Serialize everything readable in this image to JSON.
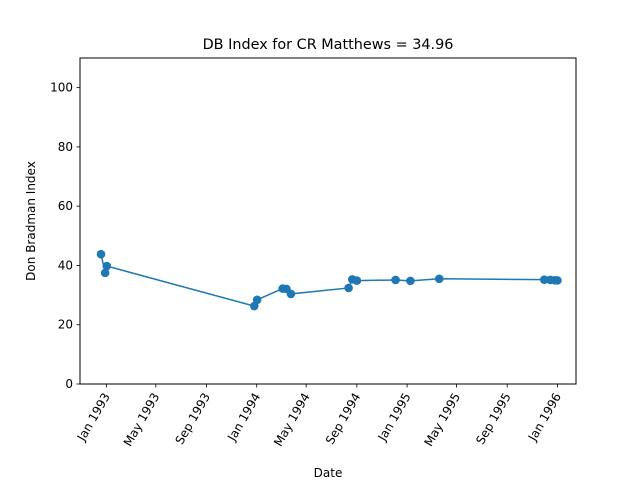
{
  "chart_data": {
    "type": "line",
    "title": "DB Index for CR Matthews = 34.96",
    "xlabel": "Date",
    "ylabel": "Don Bradman Index",
    "ylim": [
      0,
      110
    ],
    "xlim": [
      "1992-10-29",
      "1996-02-15"
    ],
    "yticks": [
      0,
      20,
      40,
      60,
      80,
      100
    ],
    "xticks": [
      {
        "date": "1993-01-01",
        "label": "Jan 1993"
      },
      {
        "date": "1993-05-01",
        "label": "May 1993"
      },
      {
        "date": "1993-09-01",
        "label": "Sep 1993"
      },
      {
        "date": "1994-01-01",
        "label": "Jan 1994"
      },
      {
        "date": "1994-05-01",
        "label": "May 1994"
      },
      {
        "date": "1994-09-01",
        "label": "Sep 1994"
      },
      {
        "date": "1995-01-01",
        "label": "Jan 1995"
      },
      {
        "date": "1995-05-01",
        "label": "May 1995"
      },
      {
        "date": "1995-09-01",
        "label": "Sep 1995"
      },
      {
        "date": "1996-01-01",
        "label": "Jan 1996"
      }
    ],
    "grid": false,
    "line_color": "#1f77b4",
    "series": [
      {
        "x": [
          "1992-12-19",
          "1992-12-29",
          "1993-01-02",
          "1993-12-26",
          "1994-01-02",
          "1994-03-05",
          "1994-03-14",
          "1994-03-25",
          "1994-08-12",
          "1994-08-21",
          "1994-09-01",
          "1994-12-04",
          "1995-01-09",
          "1995-03-20",
          "1995-11-30",
          "1995-12-15",
          "1995-12-26",
          "1996-01-01"
        ],
        "y": [
          43.8,
          37.5,
          39.8,
          26.3,
          28.4,
          32.2,
          32.1,
          30.4,
          32.4,
          35.3,
          34.9,
          35.1,
          34.8,
          35.5,
          35.2,
          35.1,
          35.0,
          34.96
        ]
      }
    ]
  }
}
